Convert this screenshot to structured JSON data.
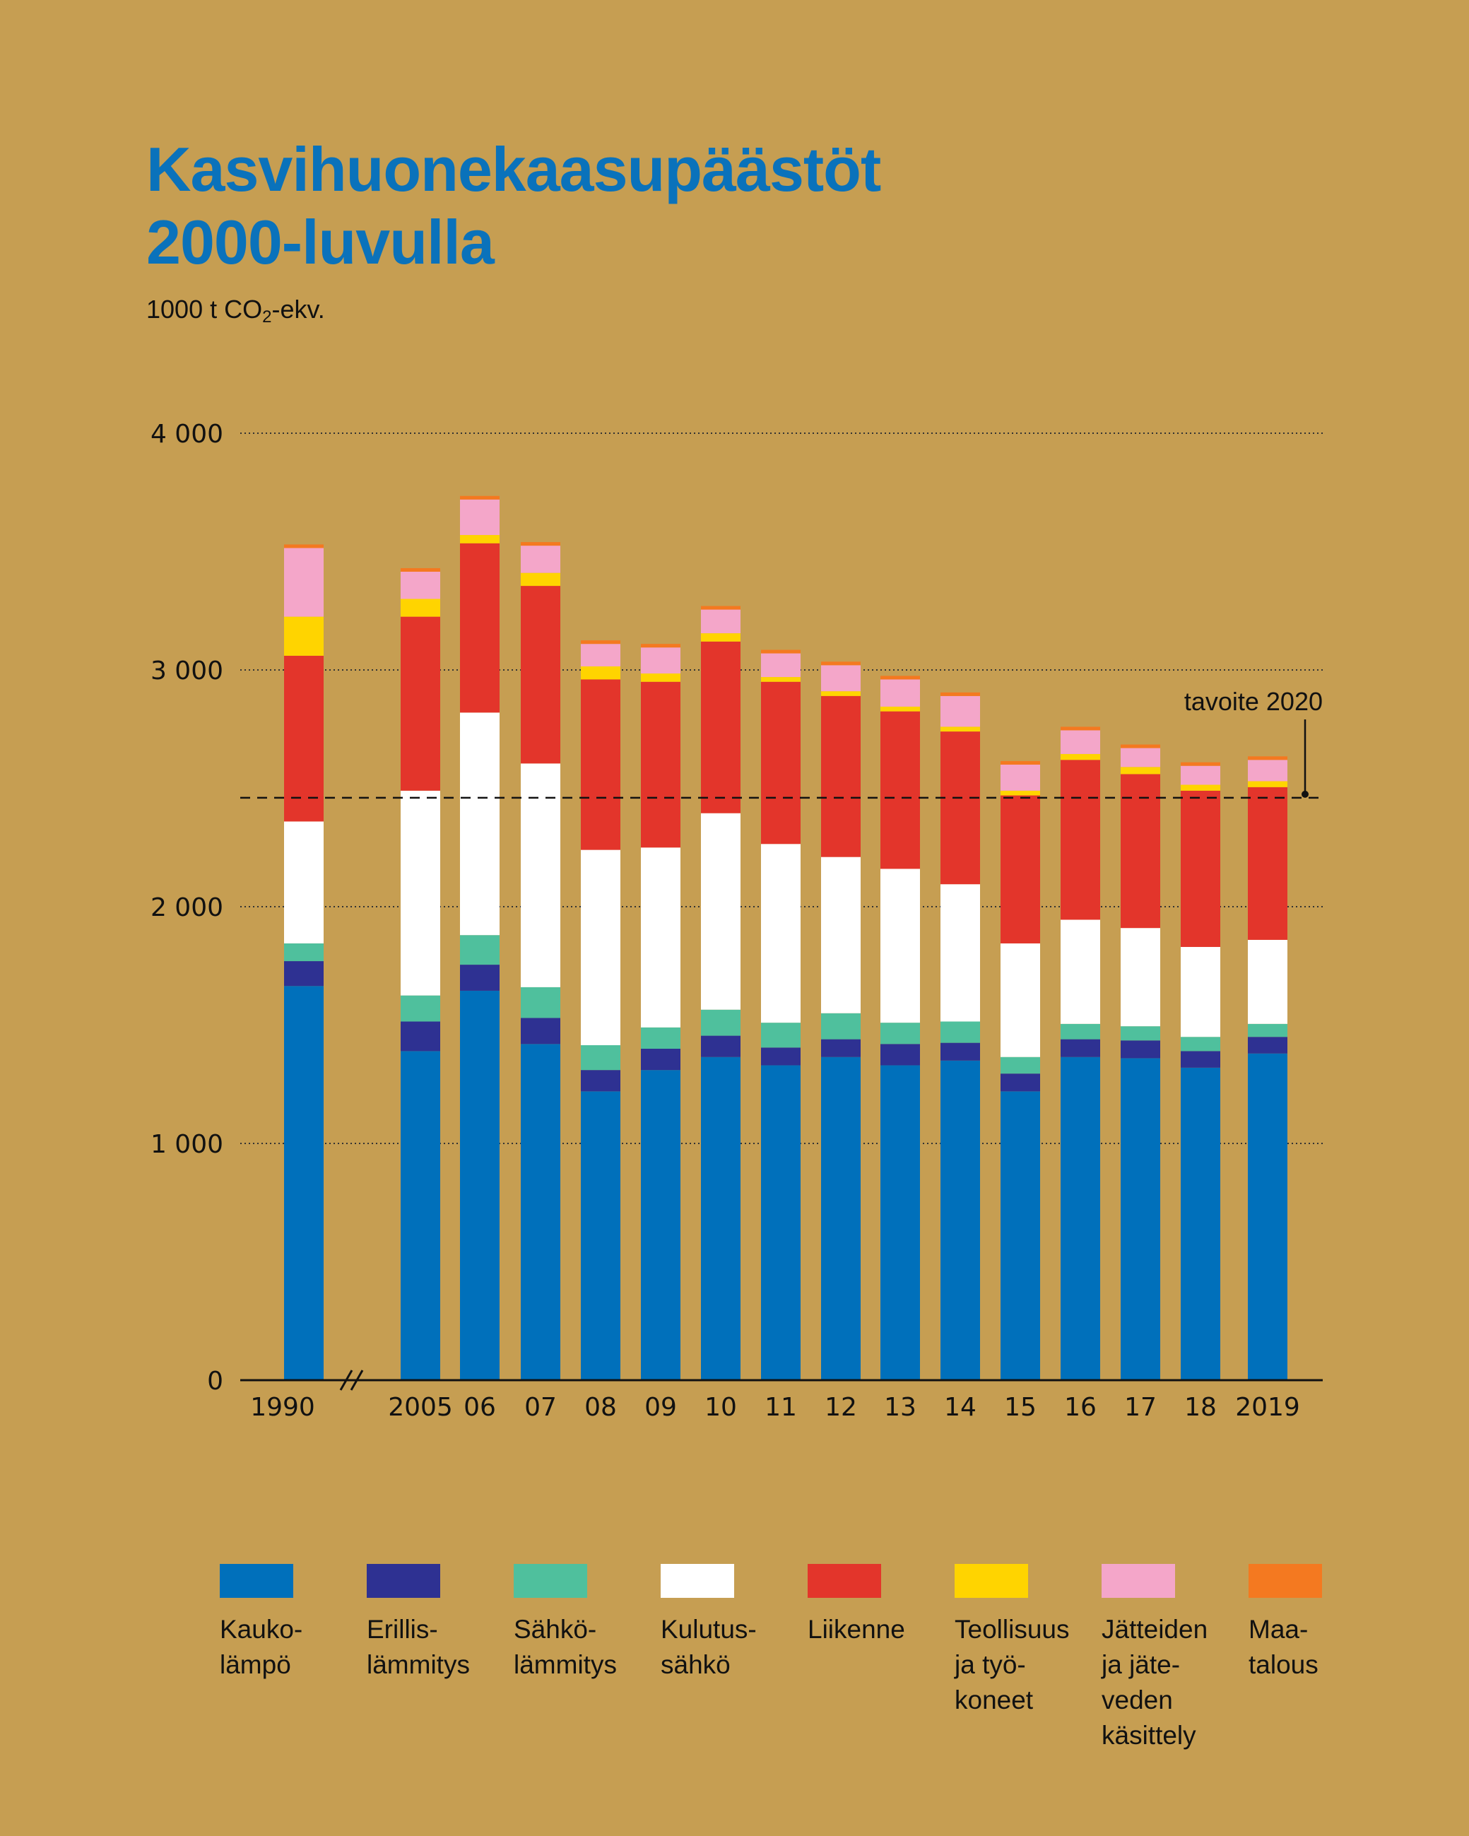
{
  "title_lines": [
    "Kasvihuonekaasupäästöt",
    "2000-luvulla"
  ],
  "unit_prefix": "1000 t CO",
  "unit_sub": "2",
  "unit_suffix": "-ekv.",
  "chart_data": {
    "type": "bar",
    "stacked": true,
    "title": "Kasvihuonekaasupäästöt 2000-luvulla",
    "ylabel": "1000 t CO2-ekv.",
    "ylim": [
      0,
      4000
    ],
    "yticks": [
      0,
      1000,
      2000,
      3000,
      4000
    ],
    "ytick_labels": [
      "0",
      "1 000",
      "2 000",
      "3 000",
      "4 000"
    ],
    "grid": true,
    "axis_break_after": "1990",
    "categories": [
      "1990",
      "2005",
      "06",
      "07",
      "08",
      "09",
      "10",
      "11",
      "12",
      "13",
      "14",
      "15",
      "16",
      "17",
      "18",
      "2019"
    ],
    "target": {
      "label": "tavoite 2020",
      "value": 2460
    },
    "series": [
      {
        "name": "Kaukolämpö",
        "color": "#0070bb",
        "values": [
          1665,
          1390,
          1645,
          1420,
          1220,
          1310,
          1365,
          1330,
          1365,
          1330,
          1350,
          1220,
          1365,
          1360,
          1320,
          1380
        ]
      },
      {
        "name": "Erillislämmitys",
        "color": "#2e3192",
        "values": [
          105,
          125,
          110,
          110,
          90,
          90,
          90,
          75,
          75,
          90,
          75,
          75,
          75,
          75,
          70,
          70
        ]
      },
      {
        "name": "Sähkölämmitys",
        "color": "#4fc09d",
        "values": [
          75,
          110,
          125,
          130,
          105,
          90,
          110,
          105,
          110,
          90,
          90,
          70,
          65,
          60,
          60,
          55
        ]
      },
      {
        "name": "Kulutussähkö",
        "color": "#ffffff",
        "values": [
          515,
          865,
          940,
          945,
          825,
          760,
          830,
          755,
          660,
          650,
          580,
          480,
          440,
          415,
          380,
          355
        ]
      },
      {
        "name": "Liikenne",
        "color": "#e3352b",
        "values": [
          700,
          735,
          715,
          750,
          720,
          700,
          725,
          685,
          680,
          665,
          645,
          625,
          675,
          650,
          660,
          645
        ]
      },
      {
        "name": "Teollisuus ja työkoneet",
        "color": "#ffd400",
        "values": [
          165,
          75,
          35,
          55,
          55,
          35,
          35,
          20,
          20,
          20,
          20,
          20,
          25,
          30,
          25,
          25
        ]
      },
      {
        "name": "Jätteiden ja jäteveden käsittely",
        "color": "#f4a6c9",
        "values": [
          290,
          115,
          150,
          115,
          95,
          110,
          100,
          100,
          110,
          115,
          130,
          110,
          100,
          80,
          80,
          90
        ]
      },
      {
        "name": "Maatalous",
        "color": "#f47920",
        "values": [
          15,
          15,
          15,
          15,
          15,
          15,
          15,
          15,
          15,
          15,
          15,
          15,
          15,
          15,
          15,
          15
        ]
      }
    ]
  },
  "legend": [
    {
      "label": "Kauko-\nlämpö",
      "color": "#0070bb"
    },
    {
      "label": "Erillis-\nlämmitys",
      "color": "#2e3192"
    },
    {
      "label": "Sähkö-\nlämmitys",
      "color": "#4fc09d"
    },
    {
      "label": "Kulutus-\nsähkö",
      "color": "#ffffff"
    },
    {
      "label": "Liikenne",
      "color": "#e3352b"
    },
    {
      "label": "Teollisuus\nja työ-\nkoneet",
      "color": "#ffd400"
    },
    {
      "label": "Jätteiden\nja jäte-\nveden\nkäsittely",
      "color": "#f4a6c9"
    },
    {
      "label": "Maa-\ntalous",
      "color": "#f47920"
    }
  ]
}
